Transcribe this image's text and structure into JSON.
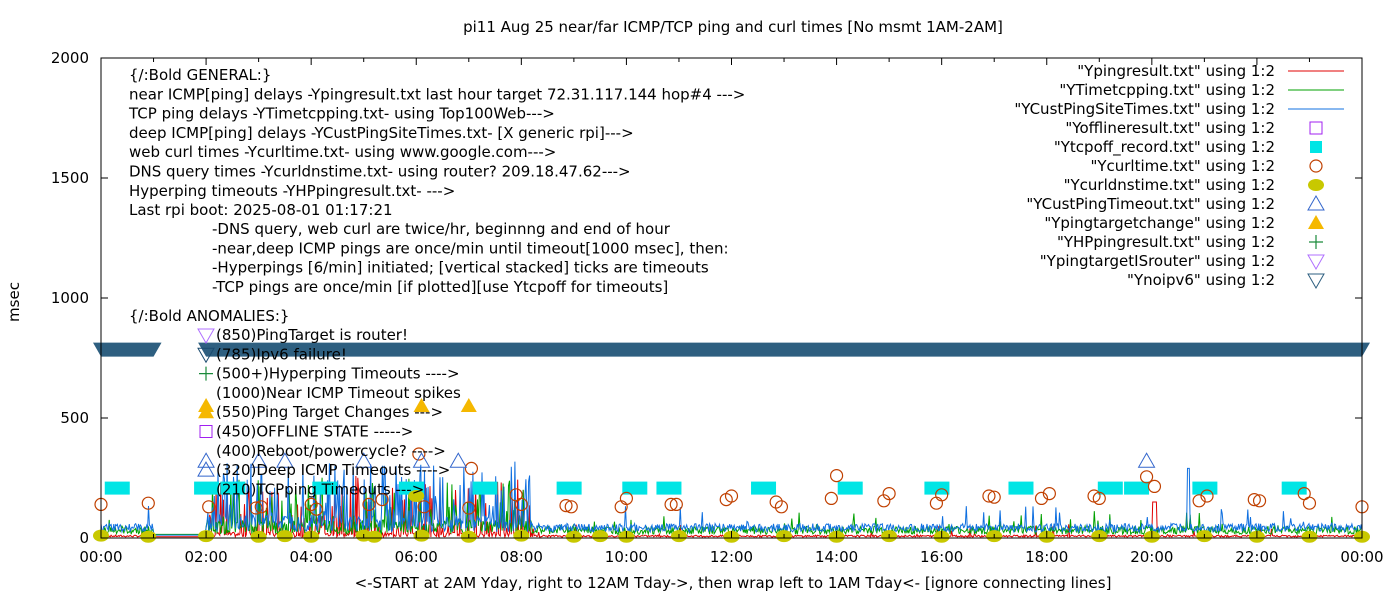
{
  "chart_data": {
    "type": "line",
    "title": "pi11 Aug 25  near/far ICMP/TCP ping and curl times [No msmt 1AM-2AM]",
    "xlabel": "<-START at 2AM Yday, right to 12AM Tday->, then wrap left to 1AM Tday<- [ignore connecting lines]",
    "ylabel": "msec",
    "xlim": [
      0,
      24
    ],
    "ylim": [
      0,
      2000
    ],
    "grid": false,
    "legend_position": "top-right",
    "x_ticks": [
      "00:00",
      "02:00",
      "04:00",
      "06:00",
      "08:00",
      "10:00",
      "12:00",
      "14:00",
      "16:00",
      "18:00",
      "20:00",
      "22:00",
      "00:00"
    ],
    "y_ticks": [
      "0",
      "500",
      "1000",
      "1500",
      "2000"
    ],
    "y_tick_values": [
      0,
      500,
      1000,
      1500,
      2000
    ],
    "annotations_general": [
      "{/:Bold GENERAL:}",
      "near ICMP[ping] delays -Ypingresult.txt last hour target 72.31.117.144 hop#4 --->",
      "TCP ping delays -YTimetcpping.txt- using Top100Web--->",
      "deep ICMP[ping] delays -YCustPingSiteTimes.txt- [X generic rpi]--->",
      "web curl times -Ycurltime.txt- using www.google.com--->",
      "DNS query times -Ycurldnstime.txt- using router? 209.18.47.62--->",
      "Hyperping timeouts -YHPpingresult.txt- --->",
      "Last rpi boot: 2025-08-01 01:17:21"
    ],
    "annotations_notes": [
      "-DNS query, web curl are twice/hr, beginnng and end of hour",
      "-near,deep ICMP pings are once/min until timeout[1000 msec], then:",
      "  -Hyperpings [6/min] initiated; [vertical stacked] ticks are timeouts",
      "-TCP pings are once/min [if plotted][use Ytcpoff for timeouts]"
    ],
    "annotations_anomalies_title": "{/:Bold ANOMALIES:}",
    "annotations_anomalies": [
      {
        "text": "(850)PingTarget is router!",
        "marker": "tri-down-open",
        "color": "#b070ff"
      },
      {
        "text": "(785)Ipv6 failure!",
        "marker": "tri-down-open",
        "color": "#1a4a6e"
      },
      {
        "text": "(500+)Hyperping Timeouts ---->",
        "marker": "plus",
        "color": "#1a8a3a"
      },
      {
        "text": "(1000)Near ICMP Timeout spikes",
        "marker": "none",
        "color": "#000000"
      },
      {
        "text": "(550)Ping Target Changes --->",
        "marker": "tri-up-filled",
        "color": "#f5b800"
      },
      {
        "text": "(450)OFFLINE STATE ----->",
        "marker": "square-open",
        "color": "#a020f0"
      },
      {
        "text": "(400)Reboot/powercycle? ---->",
        "marker": "none",
        "color": "#000000"
      },
      {
        "text": "(320)Deep ICMP Timeouts ---->",
        "marker": "tri-up-open",
        "color": "#3366cc"
      },
      {
        "text": "(210)TCPping Timeouts --->",
        "marker": "none",
        "color": "#000000"
      }
    ],
    "series": [
      {
        "name": "\"Ypingresult.txt\" using 1:2",
        "style": "line",
        "color": "#e00000",
        "description": "near ICMP ping, mostly ~5-15 msec, heavy spikes up to ~300 between 02:00-08:00",
        "baseline": 8
      },
      {
        "name": "\"YTimetcpping.txt\" using 1:2",
        "style": "line",
        "color": "#00a000",
        "description": "TCP ping, ~20-60 msec with spikes to ~200",
        "baseline": 30
      },
      {
        "name": "\"YCustPingSiteTimes.txt\" using 1:2",
        "style": "line",
        "color": "#1070e0",
        "description": "deep ICMP ping, ~20-60 msec, spikes up to ~320, spike ~290 near 20:40",
        "baseline": 40
      },
      {
        "name": "\"Yofflineresult.txt\" using 1:2",
        "style": "square-open",
        "color": "#a020f0",
        "points": []
      },
      {
        "name": "\"Ytcpoff_record.txt\" using 1:2",
        "style": "square-filled",
        "color": "#00e5e5",
        "points": [
          [
            0.3,
            210
          ],
          [
            2.0,
            210
          ],
          [
            2.5,
            210
          ],
          [
            4.25,
            210
          ],
          [
            5.9,
            210
          ],
          [
            7.3,
            210
          ],
          [
            8.9,
            210
          ],
          [
            10.15,
            210
          ],
          [
            10.8,
            210
          ],
          [
            12.6,
            210
          ],
          [
            14.25,
            210
          ],
          [
            15.9,
            210
          ],
          [
            17.5,
            210
          ],
          [
            19.2,
            210
          ],
          [
            19.7,
            210
          ],
          [
            21.0,
            210
          ],
          [
            22.7,
            210
          ]
        ]
      },
      {
        "name": "\"Ycurltime.txt\" using 1:2",
        "style": "circle-open",
        "color": "#c04000",
        "points": [
          [
            0.0,
            140
          ],
          [
            0.9,
            145
          ],
          [
            2.05,
            130
          ],
          [
            2.95,
            125
          ],
          [
            3.05,
            130
          ],
          [
            4.0,
            140
          ],
          [
            4.1,
            120
          ],
          [
            5.1,
            140
          ],
          [
            5.35,
            160
          ],
          [
            6.05,
            350
          ],
          [
            6.15,
            130
          ],
          [
            7.0,
            125
          ],
          [
            7.05,
            290
          ],
          [
            7.9,
            180
          ],
          [
            8.0,
            140
          ],
          [
            8.85,
            135
          ],
          [
            8.95,
            130
          ],
          [
            9.9,
            130
          ],
          [
            10.0,
            165
          ],
          [
            10.85,
            140
          ],
          [
            10.95,
            140
          ],
          [
            11.9,
            160
          ],
          [
            12.0,
            175
          ],
          [
            12.85,
            150
          ],
          [
            12.95,
            130
          ],
          [
            13.9,
            165
          ],
          [
            14.0,
            260
          ],
          [
            14.9,
            155
          ],
          [
            15.0,
            185
          ],
          [
            15.9,
            145
          ],
          [
            16.0,
            180
          ],
          [
            16.9,
            175
          ],
          [
            17.0,
            170
          ],
          [
            17.9,
            165
          ],
          [
            18.05,
            185
          ],
          [
            18.9,
            175
          ],
          [
            19.0,
            165
          ],
          [
            19.9,
            255
          ],
          [
            20.05,
            215
          ],
          [
            20.9,
            155
          ],
          [
            21.05,
            175
          ],
          [
            21.95,
            160
          ],
          [
            22.05,
            155
          ],
          [
            22.9,
            185
          ],
          [
            23.0,
            145
          ],
          [
            24.0,
            130
          ]
        ]
      },
      {
        "name": "\"Ycurldnstime.txt\" using 1:2",
        "style": "circle-filled",
        "color": "#c8c800",
        "points": [
          [
            0,
            10
          ],
          [
            0.9,
            5
          ],
          [
            2.0,
            8
          ],
          [
            3.0,
            5
          ],
          [
            3.5,
            8
          ],
          [
            4.0,
            5
          ],
          [
            5.0,
            10
          ],
          [
            5.2,
            5
          ],
          [
            6.0,
            175
          ],
          [
            6.1,
            10
          ],
          [
            7.0,
            5
          ],
          [
            8.0,
            10
          ],
          [
            9.0,
            5
          ],
          [
            9.5,
            8
          ],
          [
            10.0,
            5
          ],
          [
            11.0,
            8
          ],
          [
            12.0,
            5
          ],
          [
            13.0,
            8
          ],
          [
            14.0,
            5
          ],
          [
            15.0,
            8
          ],
          [
            16.0,
            5
          ],
          [
            17.0,
            8
          ],
          [
            18.0,
            5
          ],
          [
            19.0,
            8
          ],
          [
            20.0,
            5
          ],
          [
            21.0,
            8
          ],
          [
            22.0,
            5
          ],
          [
            23.0,
            5
          ],
          [
            24.0,
            5
          ]
        ]
      },
      {
        "name": "\"YCustPingTimeout.txt\" using 1:2",
        "style": "tri-up-open",
        "color": "#3366cc",
        "points": [
          [
            2.0,
            320
          ],
          [
            3.0,
            320
          ],
          [
            3.5,
            320
          ],
          [
            5.0,
            320
          ],
          [
            6.1,
            320
          ],
          [
            6.8,
            320
          ],
          [
            19.9,
            320
          ]
        ]
      },
      {
        "name": "\"Ypingtargetchange\" using 1:2",
        "style": "tri-up-filled",
        "color": "#f5b800",
        "points": [
          [
            2.0,
            550
          ],
          [
            6.1,
            550
          ],
          [
            7.0,
            550
          ]
        ]
      },
      {
        "name": "\"YHPpingresult.txt\" using 1:2",
        "style": "plus",
        "color": "#1a8a3a",
        "points": []
      },
      {
        "name": "\"YpingtargetISrouter\" using 1:2",
        "style": "tri-down-open",
        "color": "#b070ff",
        "points": []
      },
      {
        "name": "\"Ynoipv6\" using 1:2",
        "style": "tri-down-filled-band",
        "color": "#2e5f80",
        "description": "dense band of markers at ~785 msec across nearly all hours (gap ~01:00-02:00)",
        "value": 785,
        "ranges": [
          [
            0.0,
            1.0
          ],
          [
            2.0,
            24.0
          ]
        ]
      }
    ]
  }
}
